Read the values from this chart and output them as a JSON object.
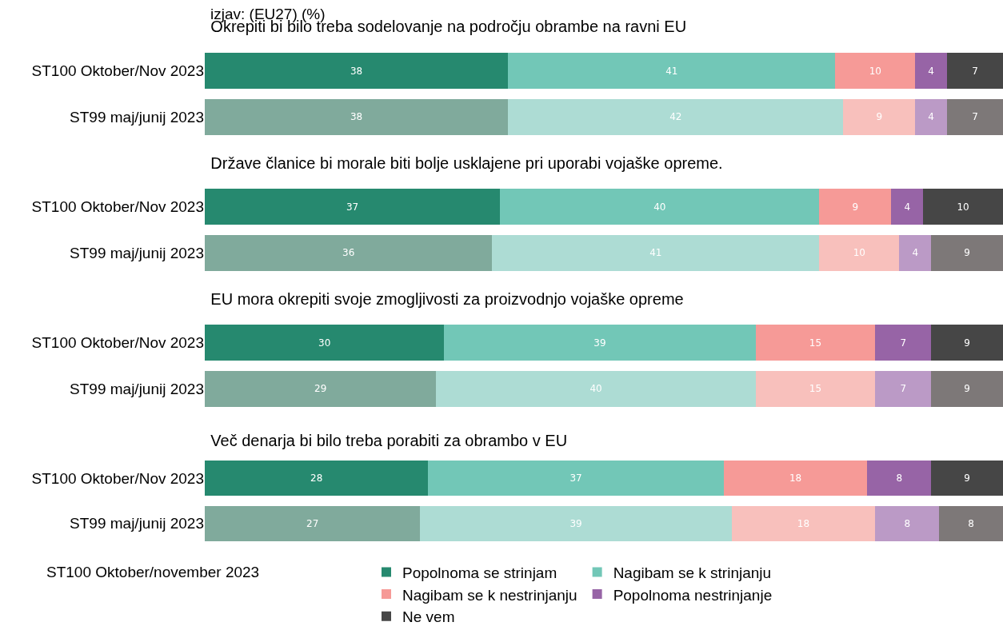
{
  "chart_data": [
    {
      "type": "bar",
      "orientation": "horizontal",
      "stacked": true,
      "data_labels": true,
      "tick_labels": "y",
      "grid": false,
      "legend": false,
      "xlim": [
        0,
        100
      ],
      "title": "Okrepiti bi bilo treba sodelovanje na področju obrambe na ravni EU",
      "annotations": [
        "izjav: (EU27) (%)"
      ],
      "categories": [
        "ST100 Oktober/Nov 2023",
        "ST99 maj/junij 2023"
      ],
      "series": [
        {
          "colors": [
            "#26896f",
            "#80aa9c"
          ],
          "values": [
            38,
            38
          ]
        },
        {
          "colors": [
            "#72c7b7",
            "#addcd4"
          ],
          "values": [
            41,
            42
          ]
        },
        {
          "colors": [
            "#f69a97",
            "#f8c0bc"
          ],
          "values": [
            10,
            9
          ]
        },
        {
          "colors": [
            "#9764a6",
            "#bb9ac6"
          ],
          "values": [
            4,
            4
          ]
        },
        {
          "colors": [
            "#464646",
            "#7d7878"
          ],
          "values": [
            7,
            7
          ]
        }
      ]
    },
    {
      "type": "bar",
      "orientation": "horizontal",
      "stacked": true,
      "data_labels": true,
      "tick_labels": "y",
      "grid": false,
      "legend": false,
      "xlim": [
        0,
        100
      ],
      "title": "Države članice bi morale biti bolje usklajene pri uporabi vojaške opreme.",
      "categories": [
        "ST100 Oktober/Nov 2023",
        "ST99 maj/junij 2023"
      ],
      "series": [
        {
          "colors": [
            "#26896f",
            "#80aa9c"
          ],
          "values": [
            37,
            36
          ]
        },
        {
          "colors": [
            "#72c7b7",
            "#addcd4"
          ],
          "values": [
            40,
            41
          ]
        },
        {
          "colors": [
            "#f69a97",
            "#f8c0bc"
          ],
          "values": [
            9,
            10
          ]
        },
        {
          "colors": [
            "#9764a6",
            "#bb9ac6"
          ],
          "values": [
            4,
            4
          ]
        },
        {
          "colors": [
            "#464646",
            "#7d7878"
          ],
          "values": [
            10,
            9
          ]
        }
      ]
    },
    {
      "type": "bar",
      "orientation": "horizontal",
      "stacked": true,
      "data_labels": true,
      "tick_labels": "y",
      "grid": false,
      "legend": false,
      "xlim": [
        0,
        100
      ],
      "title": "EU mora okrepiti svoje zmogljivosti za proizvodnjo vojaške opreme",
      "categories": [
        "ST100 Oktober/Nov 2023",
        "ST99 maj/junij 2023"
      ],
      "series": [
        {
          "colors": [
            "#26896f",
            "#80aa9c"
          ],
          "values": [
            30,
            29
          ]
        },
        {
          "colors": [
            "#72c7b7",
            "#addcd4"
          ],
          "values": [
            39,
            40
          ]
        },
        {
          "colors": [
            "#f69a97",
            "#f8c0bc"
          ],
          "values": [
            15,
            15
          ]
        },
        {
          "colors": [
            "#9764a6",
            "#bb9ac6"
          ],
          "values": [
            7,
            7
          ]
        },
        {
          "colors": [
            "#464646",
            "#7d7878"
          ],
          "values": [
            9,
            9
          ]
        }
      ]
    },
    {
      "type": "bar",
      "orientation": "horizontal",
      "stacked": true,
      "data_labels": true,
      "tick_labels": "y",
      "grid": false,
      "legend": "bottom",
      "xlim": [
        0,
        100
      ],
      "title": "Več denarja bi bilo treba porabiti za obrambo v EU",
      "annotations": [
        "ST100 Oktober/november 2023"
      ],
      "categories": [
        "ST100 Oktober/Nov 2023",
        "ST99 maj/junij 2023"
      ],
      "series": [
        {
          "name": "Popolnoma se strinjam",
          "colors": [
            "#26896f",
            "#80aa9c"
          ],
          "values": [
            28,
            27
          ]
        },
        {
          "name": "Nagibam se k strinjanju",
          "colors": [
            "#72c7b7",
            "#addcd4"
          ],
          "values": [
            37,
            39
          ]
        },
        {
          "name": "Nagibam se k nestrinjanju",
          "colors": [
            "#f69a97",
            "#f8c0bc"
          ],
          "values": [
            18,
            18
          ]
        },
        {
          "name": "Popolnoma nestrinjanje",
          "colors": [
            "#9764a6",
            "#bb9ac6"
          ],
          "values": [
            8,
            8
          ]
        },
        {
          "name": "Ne vem",
          "colors": [
            "#464646",
            "#7d7878"
          ],
          "values": [
            9,
            8
          ]
        }
      ]
    }
  ]
}
